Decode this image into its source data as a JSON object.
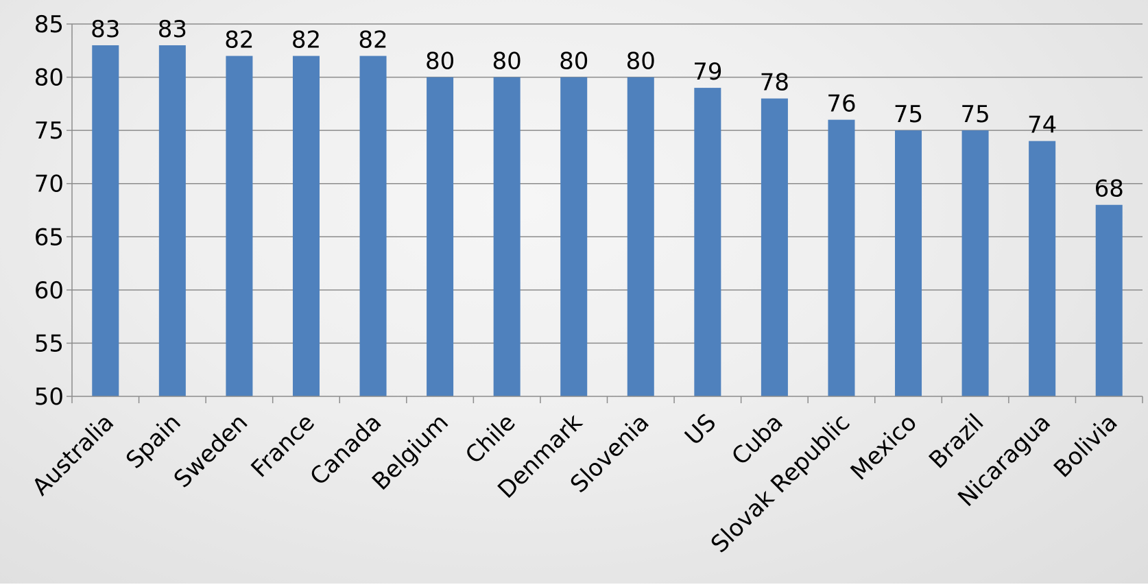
{
  "chart_data": {
    "type": "bar",
    "title": "",
    "xlabel": "",
    "ylabel": "",
    "ylim": [
      50,
      85
    ],
    "ytick_step": 5,
    "grid": true,
    "legend": "none",
    "bar_color": "#4F81BD",
    "categories": [
      "Australia",
      "Spain",
      "Sweden",
      "France",
      "Canada",
      "Belgium",
      "Chile",
      "Denmark",
      "Slovenia",
      "US",
      "Cuba",
      "Slovak Republic",
      "Mexico",
      "Brazil",
      "Nicaragua",
      "Bolivia"
    ],
    "values": [
      83,
      83,
      82,
      82,
      82,
      80,
      80,
      80,
      80,
      79,
      78,
      76,
      75,
      75,
      74,
      68
    ],
    "data_labels": [
      "83",
      "83",
      "82",
      "82",
      "82",
      "80",
      "80",
      "80",
      "80",
      "79",
      "78",
      "76",
      "75",
      "75",
      "74",
      "68"
    ],
    "yticks": [
      "50",
      "55",
      "60",
      "65",
      "70",
      "75",
      "80",
      "85"
    ]
  }
}
